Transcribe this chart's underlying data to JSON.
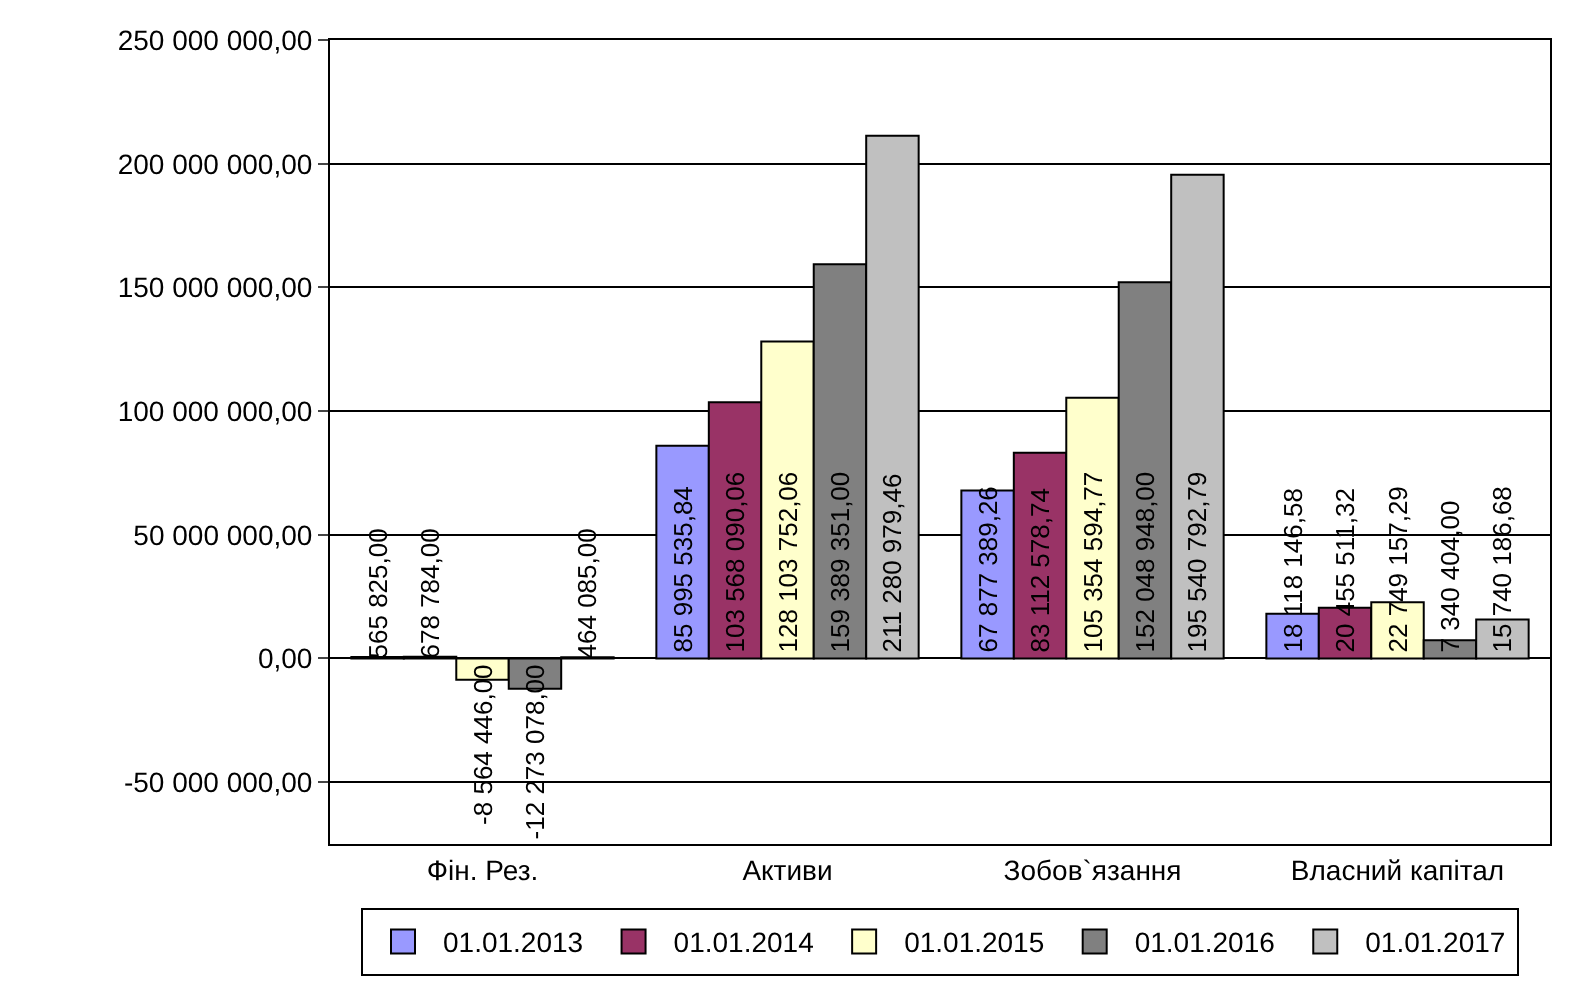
{
  "chart_data": {
    "type": "bar",
    "categories": [
      "Фін. Рез.",
      "Активи",
      "Зобов`язання",
      "Власний капітал"
    ],
    "series": [
      {
        "name": "01.01.2013",
        "color": "#9999ff",
        "values": [
          565825,
          85995535.84,
          67877389.26,
          18118146.58
        ],
        "value_labels": [
          "565 825,00",
          "85 995 535,84",
          "67 877 389,26",
          "18 118 146,58"
        ]
      },
      {
        "name": "01.01.2014",
        "color": "#993366",
        "values": [
          678784,
          103568090.06,
          83112578.74,
          20455511.32
        ],
        "value_labels": [
          "678 784,00",
          "103 568 090,06",
          "83 112 578,74",
          "20 455 511,32"
        ]
      },
      {
        "name": "01.01.2015",
        "color": "#ffffcc",
        "values": [
          -8564446,
          128103752.06,
          105354594.77,
          22749157.29
        ],
        "value_labels": [
          "-8 564 446,00",
          "128 103 752,06",
          "105 354 594,77",
          "22 749 157,29"
        ]
      },
      {
        "name": "01.01.2016",
        "color": "#808080",
        "values": [
          -12273078,
          159389351,
          152048948,
          7340404
        ],
        "value_labels": [
          "-12 273 078,00",
          "159 389 351,00",
          "152 048 948,00",
          "7 340 404,00"
        ]
      },
      {
        "name": "01.01.2017",
        "color": "#c0c0c0",
        "values": [
          464085,
          211280979.46,
          195540792.79,
          15740186.68
        ],
        "value_labels": [
          "464 085,00",
          "211 280 979,46",
          "195 540 792,79",
          "15 740 186,68"
        ]
      }
    ],
    "ylim": [
      -75000000,
      250000000
    ],
    "yticks": [
      {
        "value": -50000000,
        "label": "-50 000 000,00"
      },
      {
        "value": 0,
        "label": "0,00"
      },
      {
        "value": 50000000,
        "label": "50 000 000,00"
      },
      {
        "value": 100000000,
        "label": "100 000 000,00"
      },
      {
        "value": 150000000,
        "label": "150 000 000,00"
      },
      {
        "value": 200000000,
        "label": "200 000 000,00"
      },
      {
        "value": 250000000,
        "label": "250 000 000,00"
      }
    ],
    "grid": "y",
    "legend": "bottom"
  }
}
